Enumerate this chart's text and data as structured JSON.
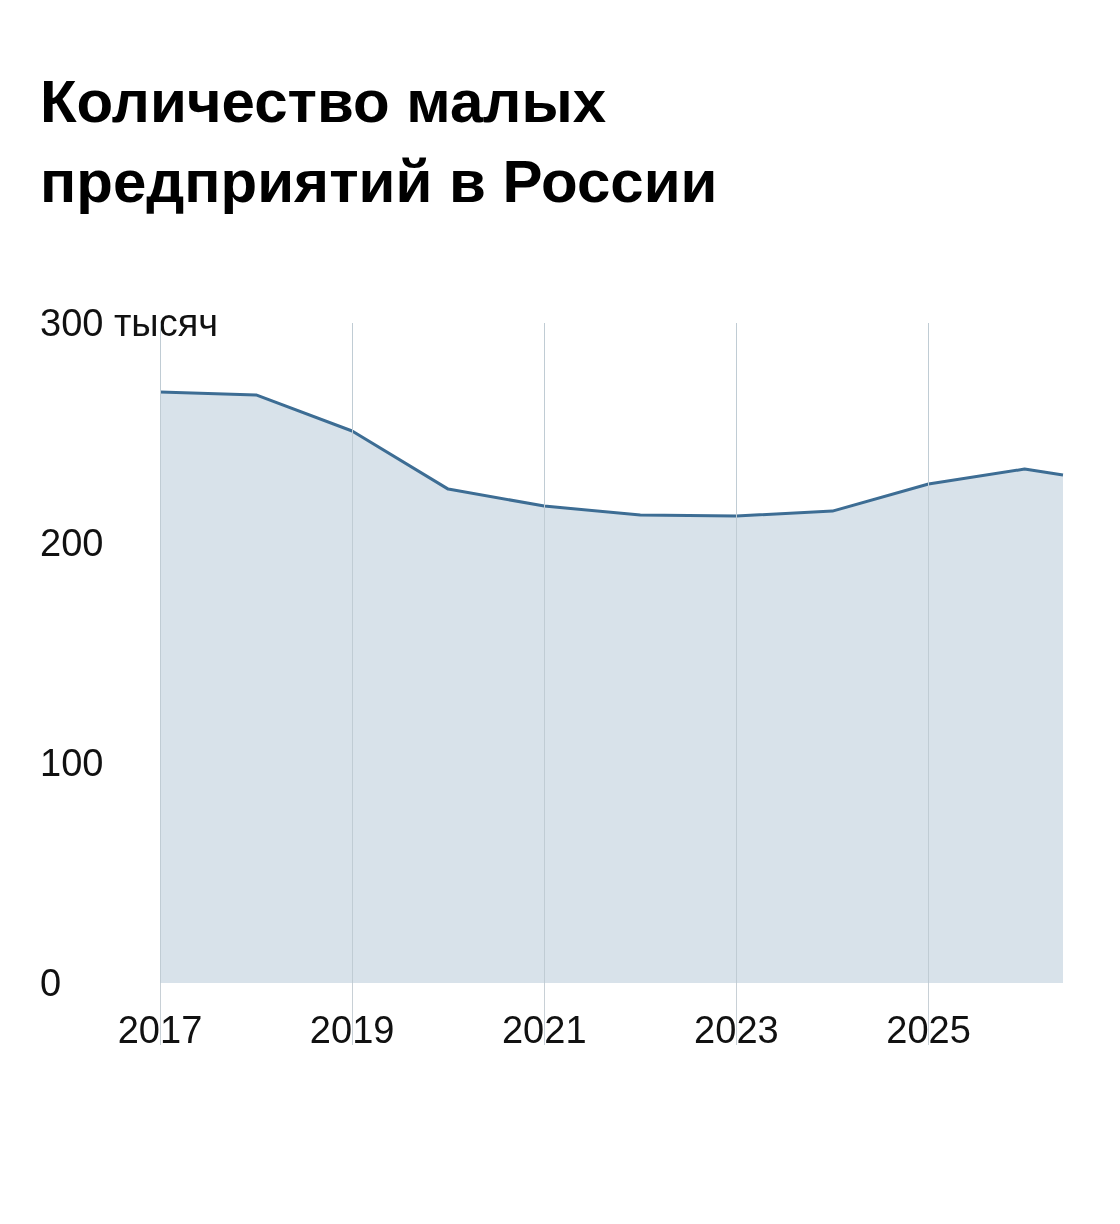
{
  "chart_data": {
    "type": "area",
    "title": "Количество малых предприятий в России",
    "x": [
      2017,
      2018,
      2019,
      2020,
      2021,
      2022,
      2023,
      2024,
      2025,
      2026,
      2026.4
    ],
    "series": [
      {
        "color": "#3d6d94",
        "values": [
          268.6,
          267.3,
          250.9,
          224.5,
          216.8,
          212.7,
          212.3,
          214.5,
          226.8,
          233.6,
          230.9
        ]
      }
    ],
    "xlim": [
      2017,
      2026.4
    ],
    "xticks": [
      2017,
      2019,
      2021,
      2023,
      2025
    ],
    "ylim": [
      0,
      300
    ],
    "yticks": [
      0,
      100,
      200,
      {
        "value": 300,
        "label": "300 тысяч"
      }
    ],
    "grid": "x"
  }
}
